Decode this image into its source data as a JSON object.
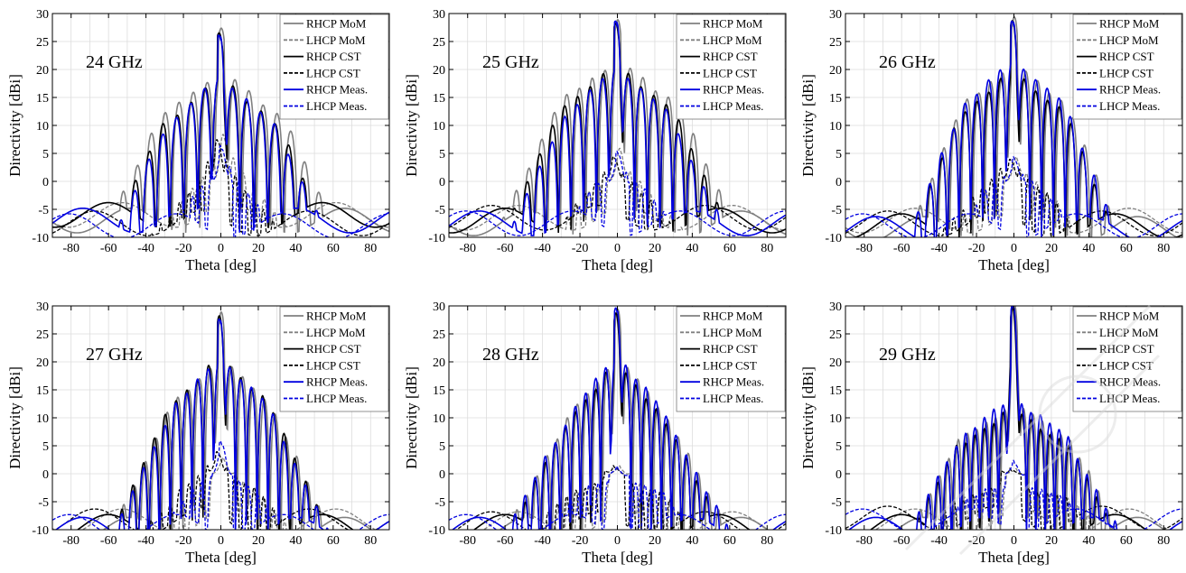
{
  "figure": {
    "xlabel": "Theta [deg]",
    "ylabel": "Directivity [dBi]"
  },
  "chart_data": [
    {
      "type": "line",
      "title": "24 GHz",
      "xlabel": "Theta [deg]",
      "ylabel": "Directivity [dBi]",
      "xlim": [
        -90,
        90
      ],
      "ylim": [
        -10,
        30
      ],
      "x_ticks": [
        -80,
        -60,
        -40,
        -20,
        0,
        20,
        40,
        60,
        80
      ],
      "y_ticks": [
        -10,
        -5,
        0,
        5,
        10,
        15,
        20,
        25,
        30
      ],
      "grid": true,
      "legend_position": "top-right",
      "series": [
        {
          "name": "RHCP MoM",
          "color": "#808080",
          "dash": "solid",
          "peak": 26.5,
          "side1": 19.2,
          "sidestep": 2.9,
          "halfwidth": 34,
          "fall": 7,
          "floor": -5.5,
          "lobe": 7.5,
          "phase": 0.6,
          "shift": 0.3
        },
        {
          "name": "LHCP MoM",
          "color": "#808080",
          "dash": "dashed",
          "peak": 7.5,
          "side1": 5.5,
          "sidestep": 2.0,
          "halfwidth": 14,
          "fall": 4,
          "floor": -4.5,
          "lobe": 5.5,
          "phase": 1.1,
          "shift": 1.5
        },
        {
          "name": "RHCP CST",
          "color": "#000000",
          "dash": "solid",
          "peak": 25.8,
          "side1": 18.0,
          "sidestep": 3.0,
          "halfwidth": 32,
          "fall": 7,
          "floor": -4.5,
          "lobe": 7.5,
          "phase": 1.9,
          "shift": -0.3
        },
        {
          "name": "LHCP CST",
          "color": "#000000",
          "dash": "dashed",
          "peak": 7.0,
          "side1": 4.5,
          "sidestep": 2.0,
          "halfwidth": 14,
          "fall": 4,
          "floor": -6,
          "lobe": 5,
          "phase": 2.7,
          "shift": -1.5
        },
        {
          "name": "RHCP Meas.",
          "color": "#0000e0",
          "dash": "solid",
          "peak": 25.5,
          "side1": 18.0,
          "sidestep": 3.0,
          "halfwidth": 30,
          "fall": 7,
          "floor": -5.5,
          "lobe": 7.5,
          "phase": 3.4,
          "shift": 0.0
        },
        {
          "name": "LHCP Meas.",
          "color": "#0000e0",
          "dash": "dashed",
          "peak": 6.0,
          "side1": 4.0,
          "sidestep": 2.0,
          "halfwidth": 12,
          "fall": 4,
          "floor": -6.5,
          "lobe": 5,
          "phase": 4.2,
          "shift": 0.8
        }
      ]
    },
    {
      "type": "line",
      "title": "25 GHz",
      "xlabel": "Theta [deg]",
      "ylabel": "Directivity [dBi]",
      "xlim": [
        -90,
        90
      ],
      "ylim": [
        -10,
        30
      ],
      "x_ticks": [
        -80,
        -60,
        -40,
        -20,
        0,
        20,
        40,
        60,
        80
      ],
      "y_ticks": [
        -10,
        -5,
        0,
        5,
        10,
        15,
        20,
        25,
        30
      ],
      "grid": true,
      "legend_position": "top-right",
      "series": [
        {
          "name": "RHCP MoM",
          "color": "#808080",
          "dash": "solid",
          "peak": 28.0,
          "side1": 21.0,
          "sidestep": 2.5,
          "halfwidth": 32,
          "fall": 7,
          "floor": -6,
          "lobe": 6.8,
          "phase": 0.6,
          "shift": 0.3
        },
        {
          "name": "LHCP MoM",
          "color": "#808080",
          "dash": "dashed",
          "peak": 5.0,
          "side1": 2.5,
          "sidestep": 1.5,
          "halfwidth": 16,
          "fall": 4,
          "floor": -5,
          "lobe": 5.5,
          "phase": 1.1,
          "shift": 1.5
        },
        {
          "name": "RHCP CST",
          "color": "#000000",
          "dash": "solid",
          "peak": 27.5,
          "side1": 20.0,
          "sidestep": 2.5,
          "halfwidth": 30,
          "fall": 7,
          "floor": -5.5,
          "lobe": 6.8,
          "phase": 1.9,
          "shift": -0.3
        },
        {
          "name": "LHCP CST",
          "color": "#000000",
          "dash": "dashed",
          "peak": 4.0,
          "side1": 2.0,
          "sidestep": 1.5,
          "halfwidth": 16,
          "fall": 4,
          "floor": -5,
          "lobe": 5,
          "phase": 2.7,
          "shift": -1.5
        },
        {
          "name": "RHCP Meas.",
          "color": "#0000e0",
          "dash": "solid",
          "peak": 28.0,
          "side1": 19.5,
          "sidestep": 2.6,
          "halfwidth": 28,
          "fall": 7,
          "floor": -6,
          "lobe": 6.8,
          "phase": 3.4,
          "shift": 0.0
        },
        {
          "name": "LHCP Meas.",
          "color": "#0000e0",
          "dash": "dashed",
          "peak": 5.0,
          "side1": 2.5,
          "sidestep": 1.5,
          "halfwidth": 14,
          "fall": 4,
          "floor": -6,
          "lobe": 5,
          "phase": 4.2,
          "shift": 0.8
        }
      ]
    },
    {
      "type": "line",
      "title": "26 GHz",
      "xlabel": "Theta [deg]",
      "ylabel": "Directivity [dBi]",
      "xlim": [
        -90,
        90
      ],
      "ylim": [
        -10,
        30
      ],
      "x_ticks": [
        -80,
        -60,
        -40,
        -20,
        0,
        20,
        40,
        60,
        80
      ],
      "y_ticks": [
        -10,
        -5,
        0,
        5,
        10,
        15,
        20,
        25,
        30
      ],
      "grid": true,
      "legend_position": "top-right",
      "series": [
        {
          "name": "RHCP MoM",
          "color": "#808080",
          "dash": "solid",
          "peak": 28.5,
          "side1": 20.5,
          "sidestep": 2.4,
          "halfwidth": 28,
          "fall": 8,
          "floor": -7,
          "lobe": 6.3,
          "phase": 0.6,
          "shift": 0.3
        },
        {
          "name": "LHCP MoM",
          "color": "#808080",
          "dash": "dashed",
          "peak": 3.5,
          "side1": 2.0,
          "sidestep": 1.5,
          "halfwidth": 18,
          "fall": 4,
          "floor": -5.5,
          "lobe": 5.5,
          "phase": 1.1,
          "shift": 1.5
        },
        {
          "name": "RHCP CST",
          "color": "#000000",
          "dash": "solid",
          "peak": 28.0,
          "side1": 19.0,
          "sidestep": 2.4,
          "halfwidth": 28,
          "fall": 8,
          "floor": -6.5,
          "lobe": 6.3,
          "phase": 1.9,
          "shift": -0.3
        },
        {
          "name": "LHCP CST",
          "color": "#000000",
          "dash": "dashed",
          "peak": 3.5,
          "side1": 2.5,
          "sidestep": 1.5,
          "halfwidth": 18,
          "fall": 4,
          "floor": -6,
          "lobe": 5,
          "phase": 2.7,
          "shift": -1.5
        },
        {
          "name": "RHCP Meas.",
          "color": "#0000e0",
          "dash": "solid",
          "peak": 28.0,
          "side1": 21.0,
          "sidestep": 2.5,
          "halfwidth": 27,
          "fall": 8,
          "floor": -7,
          "lobe": 6.3,
          "phase": 3.4,
          "shift": 0.0
        },
        {
          "name": "LHCP Meas.",
          "color": "#0000e0",
          "dash": "dashed",
          "peak": 4.0,
          "side1": 2.0,
          "sidestep": 1.5,
          "halfwidth": 16,
          "fall": 4,
          "floor": -6.5,
          "lobe": 5,
          "phase": 4.2,
          "shift": 0.8
        }
      ]
    },
    {
      "type": "line",
      "title": "27 GHz",
      "xlabel": "Theta [deg]",
      "ylabel": "Directivity [dBi]",
      "xlim": [
        -90,
        90
      ],
      "ylim": [
        -10,
        30
      ],
      "x_ticks": [
        -80,
        -60,
        -40,
        -20,
        0,
        20,
        40,
        60,
        80
      ],
      "y_ticks": [
        -10,
        -5,
        0,
        5,
        10,
        15,
        20,
        25,
        30
      ],
      "grid": true,
      "legend_position": "top-right",
      "series": [
        {
          "name": "RHCP MoM",
          "color": "#808080",
          "dash": "solid",
          "peak": 28.0,
          "side1": 20.0,
          "sidestep": 2.6,
          "halfwidth": 26,
          "fall": 7,
          "floor": -8.5,
          "lobe": 5.8,
          "phase": 0.6,
          "shift": 0.3
        },
        {
          "name": "LHCP MoM",
          "color": "#808080",
          "dash": "dashed",
          "peak": 2.0,
          "side1": 0.5,
          "sidestep": 1.5,
          "halfwidth": 20,
          "fall": 4,
          "floor": -7,
          "lobe": 5.5,
          "phase": 1.1,
          "shift": 1.5
        },
        {
          "name": "RHCP CST",
          "color": "#000000",
          "dash": "solid",
          "peak": 27.5,
          "side1": 20.0,
          "sidestep": 2.6,
          "halfwidth": 26,
          "fall": 7,
          "floor": -8,
          "lobe": 5.8,
          "phase": 1.9,
          "shift": -0.3
        },
        {
          "name": "LHCP CST",
          "color": "#000000",
          "dash": "dashed",
          "peak": 3.5,
          "side1": 1.5,
          "sidestep": 1.5,
          "halfwidth": 20,
          "fall": 4,
          "floor": -7,
          "lobe": 5,
          "phase": 2.7,
          "shift": -1.5
        },
        {
          "name": "RHCP Meas.",
          "color": "#0000e0",
          "dash": "solid",
          "peak": 27.0,
          "side1": 20.0,
          "sidestep": 2.7,
          "halfwidth": 25,
          "fall": 7,
          "floor": -8.5,
          "lobe": 5.8,
          "phase": 3.4,
          "shift": 0.0
        },
        {
          "name": "LHCP Meas.",
          "color": "#0000e0",
          "dash": "dashed",
          "peak": 5.5,
          "side1": 0.5,
          "sidestep": 1.5,
          "halfwidth": 18,
          "fall": 4,
          "floor": -8,
          "lobe": 5,
          "phase": 4.2,
          "shift": 0.8
        }
      ]
    },
    {
      "type": "line",
      "title": "28 GHz",
      "xlabel": "Theta [deg]",
      "ylabel": "Directivity [dBi]",
      "xlim": [
        -90,
        90
      ],
      "ylim": [
        -10,
        30
      ],
      "x_ticks": [
        -80,
        -60,
        -40,
        -20,
        0,
        20,
        40,
        60,
        80
      ],
      "y_ticks": [
        -10,
        -5,
        0,
        5,
        10,
        15,
        20,
        25,
        30
      ],
      "grid": true,
      "legend_position": "top-right",
      "series": [
        {
          "name": "RHCP MoM",
          "color": "#808080",
          "dash": "solid",
          "peak": 28.5,
          "side1": 20.0,
          "sidestep": 3.0,
          "halfwidth": 24,
          "fall": 6,
          "floor": -8.5,
          "lobe": 5.4,
          "phase": 0.6,
          "shift": 0.3
        },
        {
          "name": "LHCP MoM",
          "color": "#808080",
          "dash": "dashed",
          "peak": 0.5,
          "side1": -1.0,
          "sidestep": 1.0,
          "halfwidth": 26,
          "fall": 4,
          "floor": -7.5,
          "lobe": 5.5,
          "phase": 1.1,
          "shift": 1.5
        },
        {
          "name": "RHCP CST",
          "color": "#000000",
          "dash": "solid",
          "peak": 28.0,
          "side1": 19.0,
          "sidestep": 3.0,
          "halfwidth": 24,
          "fall": 6,
          "floor": -8,
          "lobe": 5.4,
          "phase": 1.9,
          "shift": -0.3
        },
        {
          "name": "LHCP CST",
          "color": "#000000",
          "dash": "dashed",
          "peak": 1.0,
          "side1": -1.0,
          "sidestep": 1.0,
          "halfwidth": 26,
          "fall": 4,
          "floor": -7.5,
          "lobe": 5,
          "phase": 2.7,
          "shift": -1.5
        },
        {
          "name": "RHCP Meas.",
          "color": "#0000e0",
          "dash": "solid",
          "peak": 29.0,
          "side1": 20.5,
          "sidestep": 3.0,
          "halfwidth": 23,
          "fall": 6,
          "floor": -8.5,
          "lobe": 5.4,
          "phase": 3.4,
          "shift": 0.0
        },
        {
          "name": "LHCP Meas.",
          "color": "#0000e0",
          "dash": "dashed",
          "peak": 1.0,
          "side1": -1.0,
          "sidestep": 1.0,
          "halfwidth": 24,
          "fall": 4,
          "floor": -8,
          "lobe": 5,
          "phase": 4.2,
          "shift": 0.8
        }
      ]
    },
    {
      "type": "line",
      "title": "29 GHz",
      "xlabel": "Theta [deg]",
      "ylabel": "Directivity [dBi]",
      "xlim": [
        -90,
        90
      ],
      "ylim": [
        -10,
        30
      ],
      "x_ticks": [
        -80,
        -60,
        -40,
        -20,
        0,
        20,
        40,
        60,
        80
      ],
      "y_ticks": [
        -10,
        -5,
        0,
        5,
        10,
        15,
        20,
        25,
        30
      ],
      "grid": true,
      "legend_position": "top-right",
      "series": [
        {
          "name": "RHCP MoM",
          "color": "#808080",
          "dash": "solid",
          "peak": 29.5,
          "side1": 12.0,
          "sidestep": 2.2,
          "halfwidth": 30,
          "fall": 6,
          "floor": -8.5,
          "lobe": 5.0,
          "phase": 0.6,
          "shift": 0.3
        },
        {
          "name": "LHCP MoM",
          "color": "#808080",
          "dash": "dashed",
          "peak": 0.0,
          "side1": -2.0,
          "sidestep": 1.0,
          "halfwidth": 30,
          "fall": 4,
          "floor": -7,
          "lobe": 5.5,
          "phase": 1.1,
          "shift": 1.5
        },
        {
          "name": "RHCP CST",
          "color": "#000000",
          "dash": "solid",
          "peak": 29.0,
          "side1": 11.0,
          "sidestep": 2.2,
          "halfwidth": 30,
          "fall": 6,
          "floor": -8,
          "lobe": 5.0,
          "phase": 1.9,
          "shift": -0.3
        },
        {
          "name": "LHCP CST",
          "color": "#000000",
          "dash": "dashed",
          "peak": 0.5,
          "side1": -2.0,
          "sidestep": 1.0,
          "halfwidth": 30,
          "fall": 4,
          "floor": -6.5,
          "lobe": 5,
          "phase": 2.7,
          "shift": -1.5
        },
        {
          "name": "RHCP Meas.",
          "color": "#0000e0",
          "dash": "solid",
          "peak": 29.5,
          "side1": 13.0,
          "sidestep": 2.2,
          "halfwidth": 28,
          "fall": 6,
          "floor": -8.5,
          "lobe": 5.0,
          "phase": 3.4,
          "shift": 0.0
        },
        {
          "name": "LHCP Meas.",
          "color": "#0000e0",
          "dash": "dashed",
          "peak": 2.0,
          "side1": -2.0,
          "sidestep": 1.0,
          "halfwidth": 28,
          "fall": 4,
          "floor": -7,
          "lobe": 5,
          "phase": 4.2,
          "shift": 0.8
        }
      ]
    }
  ]
}
